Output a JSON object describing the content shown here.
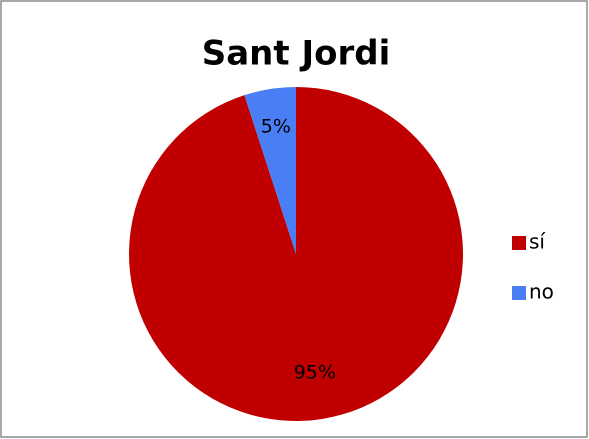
{
  "chart_data": {
    "type": "pie",
    "title": "Sant Jordi",
    "categories": [
      "sí",
      "no"
    ],
    "values": [
      95,
      5
    ],
    "value_labels": [
      "95%",
      "5%"
    ],
    "colors": [
      "#c00000",
      "#4a7ef5"
    ],
    "legend": "right"
  }
}
